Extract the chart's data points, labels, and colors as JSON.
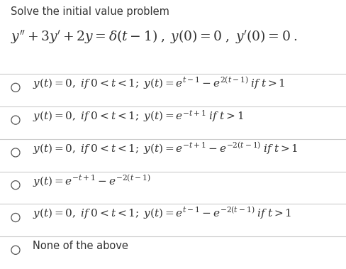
{
  "title_line1": "Solve the initial value problem",
  "equation": "$y'' + 3y' + 2y = \\delta(t-1)\\;,\\;y(0) = 0\\;,\\;y'(0) = 0\\;.$",
  "options": [
    "$y(t) = 0,\\; if\\; 0 < t < 1;\\; y(t) = e^{t-1} - e^{2(t-1)}\\; if\\;t > 1$",
    "$y(t) = 0,\\; if\\; 0 < t < 1;\\; y(t) = e^{-t+1}\\; if\\;t > 1$",
    "$y(t) = 0,\\; if\\; 0 < t < 1;\\; y(t) = e^{-t+1} - e^{-2(t-1)}\\; if\\;t > 1$",
    "$y(t) = e^{-t+1} - e^{-2(t-1)}$",
    "$y(t) = 0,\\; if\\; 0 < t < 1;\\; y(t) = e^{t-1} - e^{-2(t-1)}\\; if\\;t > 1$",
    "None of the above"
  ],
  "bg_color": "#ffffff",
  "text_color": "#333333",
  "divider_color": "#cccccc",
  "title_fontsize": 10.5,
  "eq_fontsize": 13.5,
  "option_fontsize": 11.0,
  "none_fontsize": 10.5,
  "fig_width": 4.88,
  "fig_height": 3.79
}
